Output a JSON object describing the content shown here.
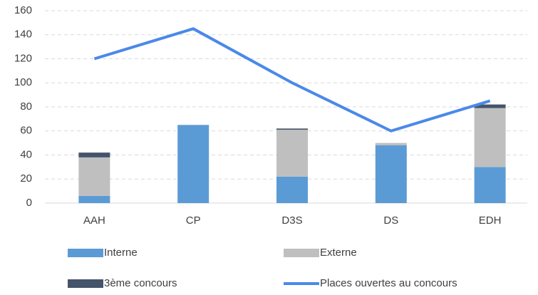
{
  "chart_data": {
    "type": "bar-line",
    "categories": [
      "AAH",
      "CP",
      "D3S",
      "DS",
      "EDH"
    ],
    "series": [
      {
        "name": "Interne",
        "color": "#5b9bd5",
        "kind": "bar",
        "values": [
          6,
          65,
          22,
          48,
          30
        ]
      },
      {
        "name": "Externe",
        "color": "#bfbfbf",
        "kind": "bar",
        "values": [
          32,
          0,
          39,
          2,
          49
        ]
      },
      {
        "name": "3ème concours",
        "color": "#44546a",
        "kind": "bar",
        "values": [
          4,
          0,
          1,
          0,
          3
        ]
      },
      {
        "name": "Places ouvertes au concours",
        "color": "#4a89e8",
        "kind": "line",
        "values": [
          120,
          145,
          100,
          60,
          85
        ]
      }
    ],
    "stacked": true,
    "ylim": [
      0,
      160
    ],
    "yticks": [
      0,
      20,
      40,
      60,
      80,
      100,
      120,
      140,
      160
    ],
    "grid": true,
    "legend": "bottom"
  }
}
